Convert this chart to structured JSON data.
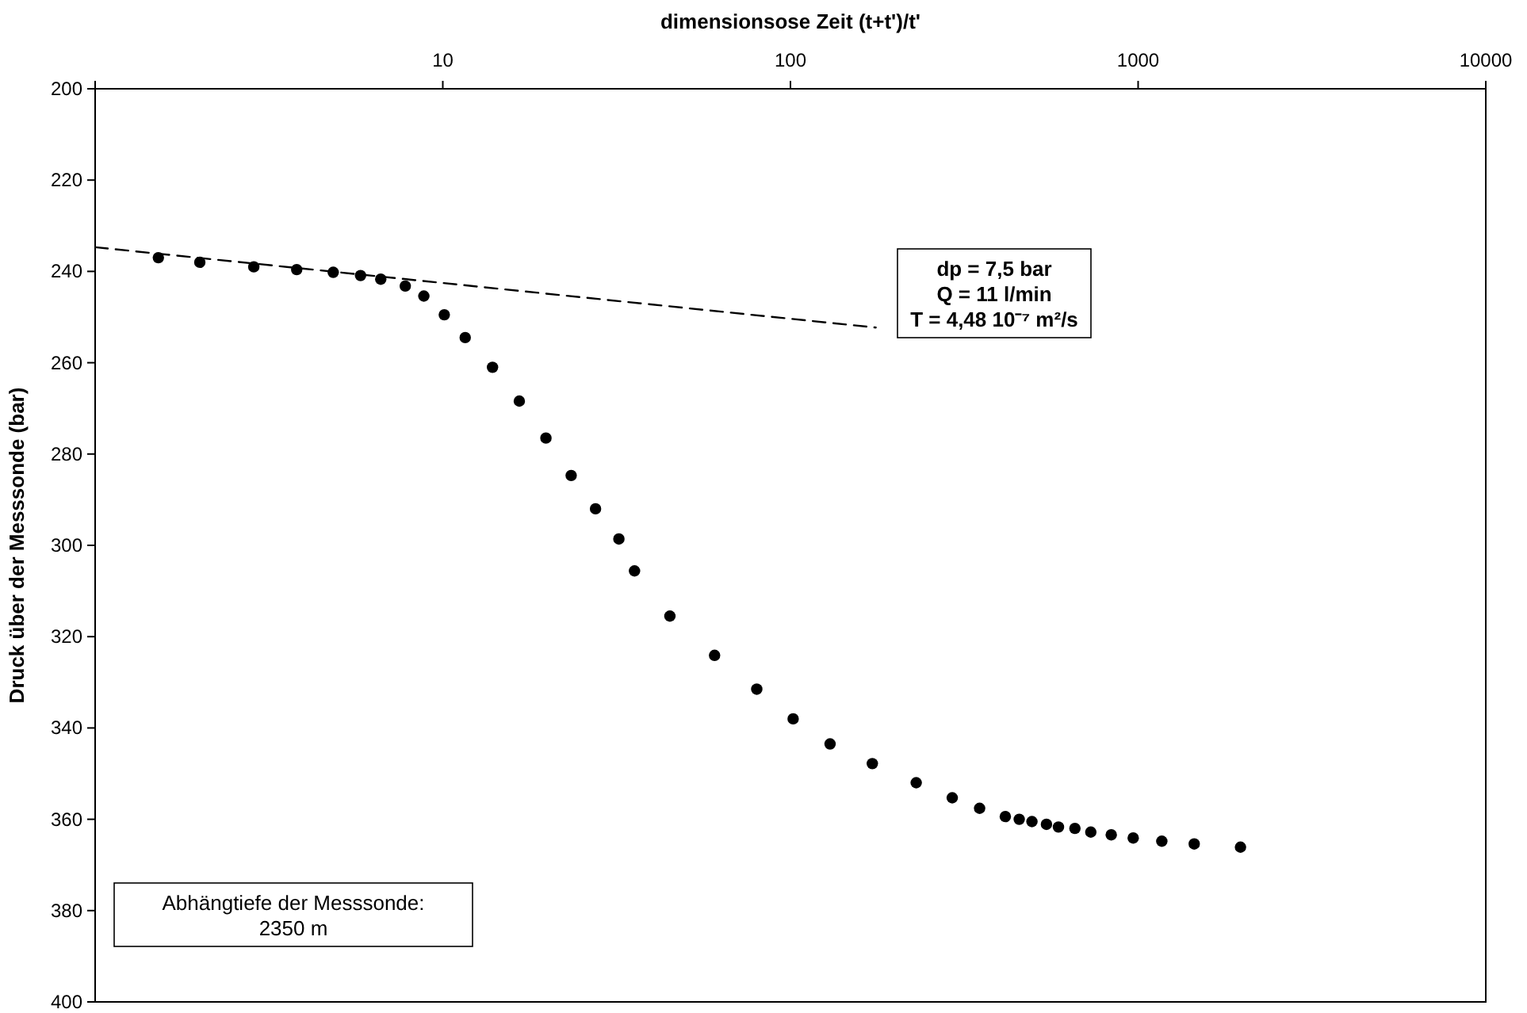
{
  "chart_data": {
    "type": "scatter",
    "xlabel": "dimensionsose Zeit (t+t')/t'",
    "ylabel": "Druck über der Messsonde (bar)",
    "log": "x",
    "xlim": [
      1,
      10000
    ],
    "xticks": [
      {
        "value": 1,
        "label": null
      },
      10,
      100,
      1000,
      10000
    ],
    "ylim": [
      400,
      200
    ],
    "yticks": [
      200,
      220,
      240,
      260,
      280,
      300,
      320,
      340,
      360,
      380,
      400
    ],
    "series": [
      {
        "color": "#000000",
        "marker": "circle",
        "x": [
          1.52,
          2.0,
          2.86,
          3.8,
          4.84,
          5.8,
          6.63,
          7.8,
          8.82,
          10.1,
          11.6,
          13.9,
          16.6,
          19.8,
          23.4,
          27.5,
          32.1,
          35.6,
          45,
          60.5,
          80,
          101.8,
          130,
          172,
          230,
          292,
          350,
          415,
          455,
          495,
          545,
          590,
          658,
          731,
          837,
          968,
          1170,
          1450,
          1970
        ],
        "values": [
          237.0,
          238.0,
          239.0,
          239.6,
          240.2,
          240.9,
          241.7,
          243.2,
          245.4,
          249.5,
          254.5,
          261.0,
          268.4,
          276.5,
          284.7,
          292.0,
          298.6,
          305.6,
          315.5,
          324.1,
          331.5,
          338.0,
          343.5,
          347.8,
          352.0,
          355.3,
          357.6,
          359.4,
          360.0,
          360.5,
          361.1,
          361.7,
          362.0,
          362.8,
          363.4,
          364.1,
          364.8,
          365.4,
          366.1
        ]
      },
      {
        "type": "line",
        "color": "#000000",
        "line_style": "dashed",
        "marker": "none",
        "x": [
          1,
          176
        ],
        "values": [
          234.7,
          252.3
        ]
      }
    ],
    "annotations": [
      "dp = 7,5 bar\nQ = 11 l/min\nT = 4,48 10⁻⁷ m²/s",
      "Abhängtiefe der Messsonde:\n2350 m"
    ]
  }
}
